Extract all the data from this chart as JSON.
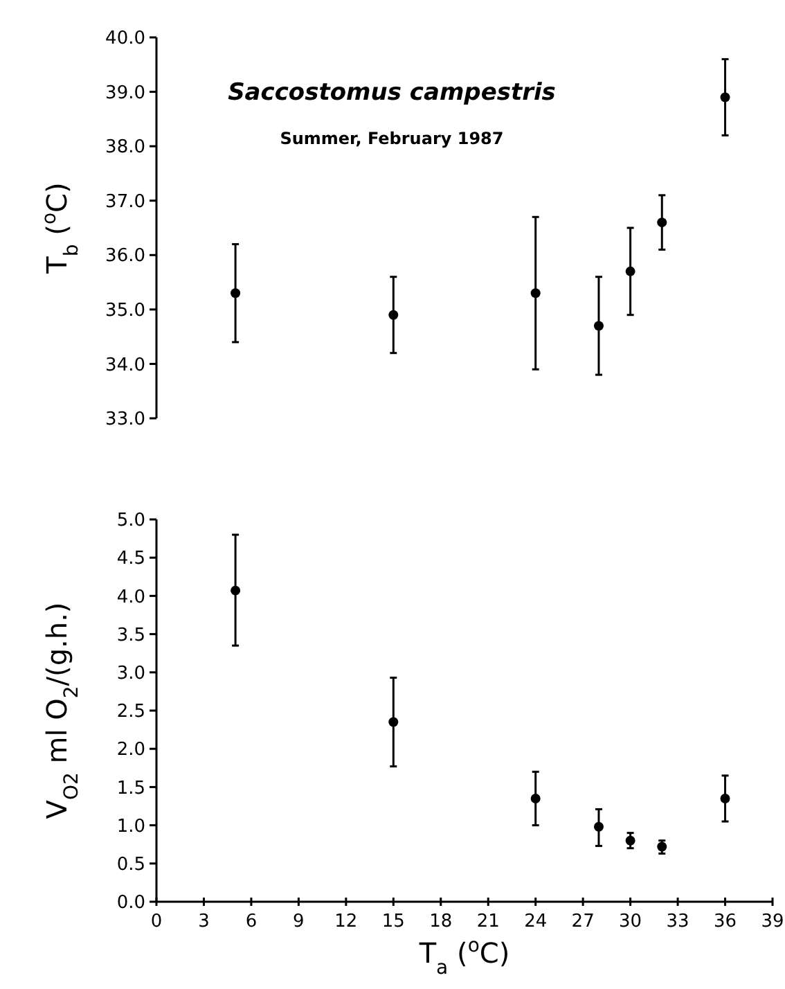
{
  "chart_data": [
    {
      "type": "scatter",
      "title": "Saccostomus campestris",
      "subtitle": "Summer, February 1987",
      "ylabel": "T$_{b}$ ($^{o}$C)",
      "x": [
        5,
        15,
        24,
        28,
        30,
        32,
        36
      ],
      "values": [
        35.3,
        34.9,
        35.3,
        34.7,
        35.7,
        36.6,
        38.9
      ],
      "errors": [
        [
          34.4,
          36.2
        ],
        [
          34.2,
          35.6
        ],
        [
          33.9,
          36.7
        ],
        [
          33.8,
          35.6
        ],
        [
          34.9,
          36.5
        ],
        [
          36.1,
          37.1
        ],
        [
          38.2,
          39.6
        ]
      ],
      "color": "#000000",
      "marker": "circle",
      "xlim": [
        0,
        39
      ],
      "ylim": [
        33,
        40
      ],
      "yticks": [
        {
          "value": 33,
          "label": "33.0"
        },
        {
          "value": 34,
          "label": "34.0"
        },
        {
          "value": 35,
          "label": "35.0"
        },
        {
          "value": 36,
          "label": "36.0"
        },
        {
          "value": 37,
          "label": "37.0"
        },
        {
          "value": 38,
          "label": "38.0"
        },
        {
          "value": 39,
          "label": "39.0"
        },
        {
          "value": 40,
          "label": "40.0"
        }
      ],
      "tick_labels": "y",
      "grid": false
    },
    {
      "type": "scatter",
      "xlabel": "T$_{a}$ ($^{o}$C)",
      "ylabel": "V$_{O2}$ ml O$_{2}$/(g.h.)",
      "x": [
        5,
        15,
        24,
        28,
        30,
        32,
        36
      ],
      "values": [
        4.07,
        2.35,
        1.35,
        0.98,
        0.8,
        0.72,
        1.35
      ],
      "errors": [
        [
          3.35,
          4.8
        ],
        [
          1.77,
          2.93
        ],
        [
          1.0,
          1.7
        ],
        [
          0.73,
          1.21
        ],
        [
          0.7,
          0.9
        ],
        [
          0.63,
          0.8
        ],
        [
          1.05,
          1.65
        ]
      ],
      "color": "#000000",
      "marker": "circle",
      "xlim": [
        0,
        39
      ],
      "xticks": [
        0,
        3,
        6,
        9,
        12,
        15,
        18,
        21,
        24,
        27,
        30,
        33,
        36,
        39
      ],
      "ylim": [
        0,
        5
      ],
      "yticks": [
        {
          "value": 0,
          "label": "0.0"
        },
        {
          "value": 0.5,
          "label": "0.5"
        },
        {
          "value": 1,
          "label": "1.0"
        },
        {
          "value": 1.5,
          "label": "1.5"
        },
        {
          "value": 2,
          "label": "2.0"
        },
        {
          "value": 2.5,
          "label": "2.5"
        },
        {
          "value": 3,
          "label": "3.0"
        },
        {
          "value": 3.5,
          "label": "3.5"
        },
        {
          "value": 4,
          "label": "4.0"
        },
        {
          "value": 4.5,
          "label": "4.5"
        },
        {
          "value": 5,
          "label": "5.0"
        }
      ],
      "grid": false
    }
  ]
}
